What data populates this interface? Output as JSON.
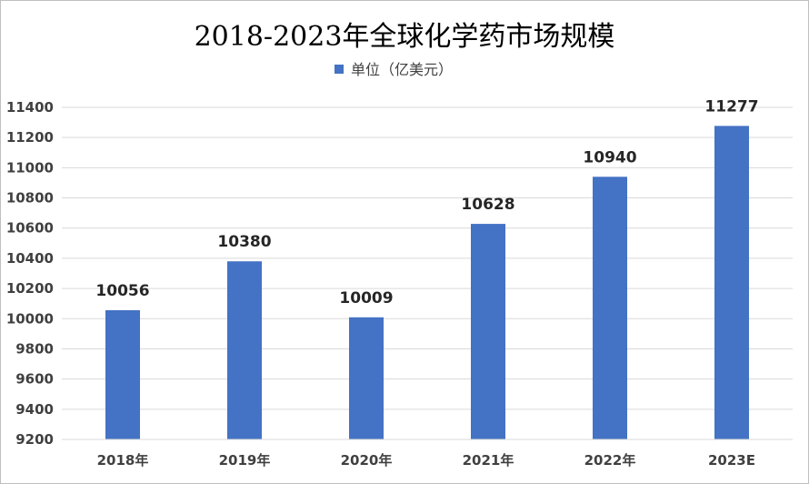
{
  "chart_data": {
    "type": "bar",
    "title": "2018-2023年全球化学药市场规模",
    "xlabel": "",
    "ylabel": "",
    "categories": [
      "2018年",
      "2019年",
      "2020年",
      "2021年",
      "2022年",
      "2023E"
    ],
    "series": [
      {
        "name": "单位（亿美元）",
        "values": [
          10056,
          10380,
          10009,
          10628,
          10940,
          11277
        ]
      }
    ],
    "ylim": [
      9200,
      11400
    ],
    "yticks": [
      9200,
      9400,
      9600,
      9800,
      10000,
      10200,
      10400,
      10600,
      10800,
      11000,
      11200,
      11400
    ],
    "grid": true,
    "legend_position": "top",
    "bar_color": "#4472C4",
    "grid_color": "#d9d9d9",
    "data_labels": true
  }
}
